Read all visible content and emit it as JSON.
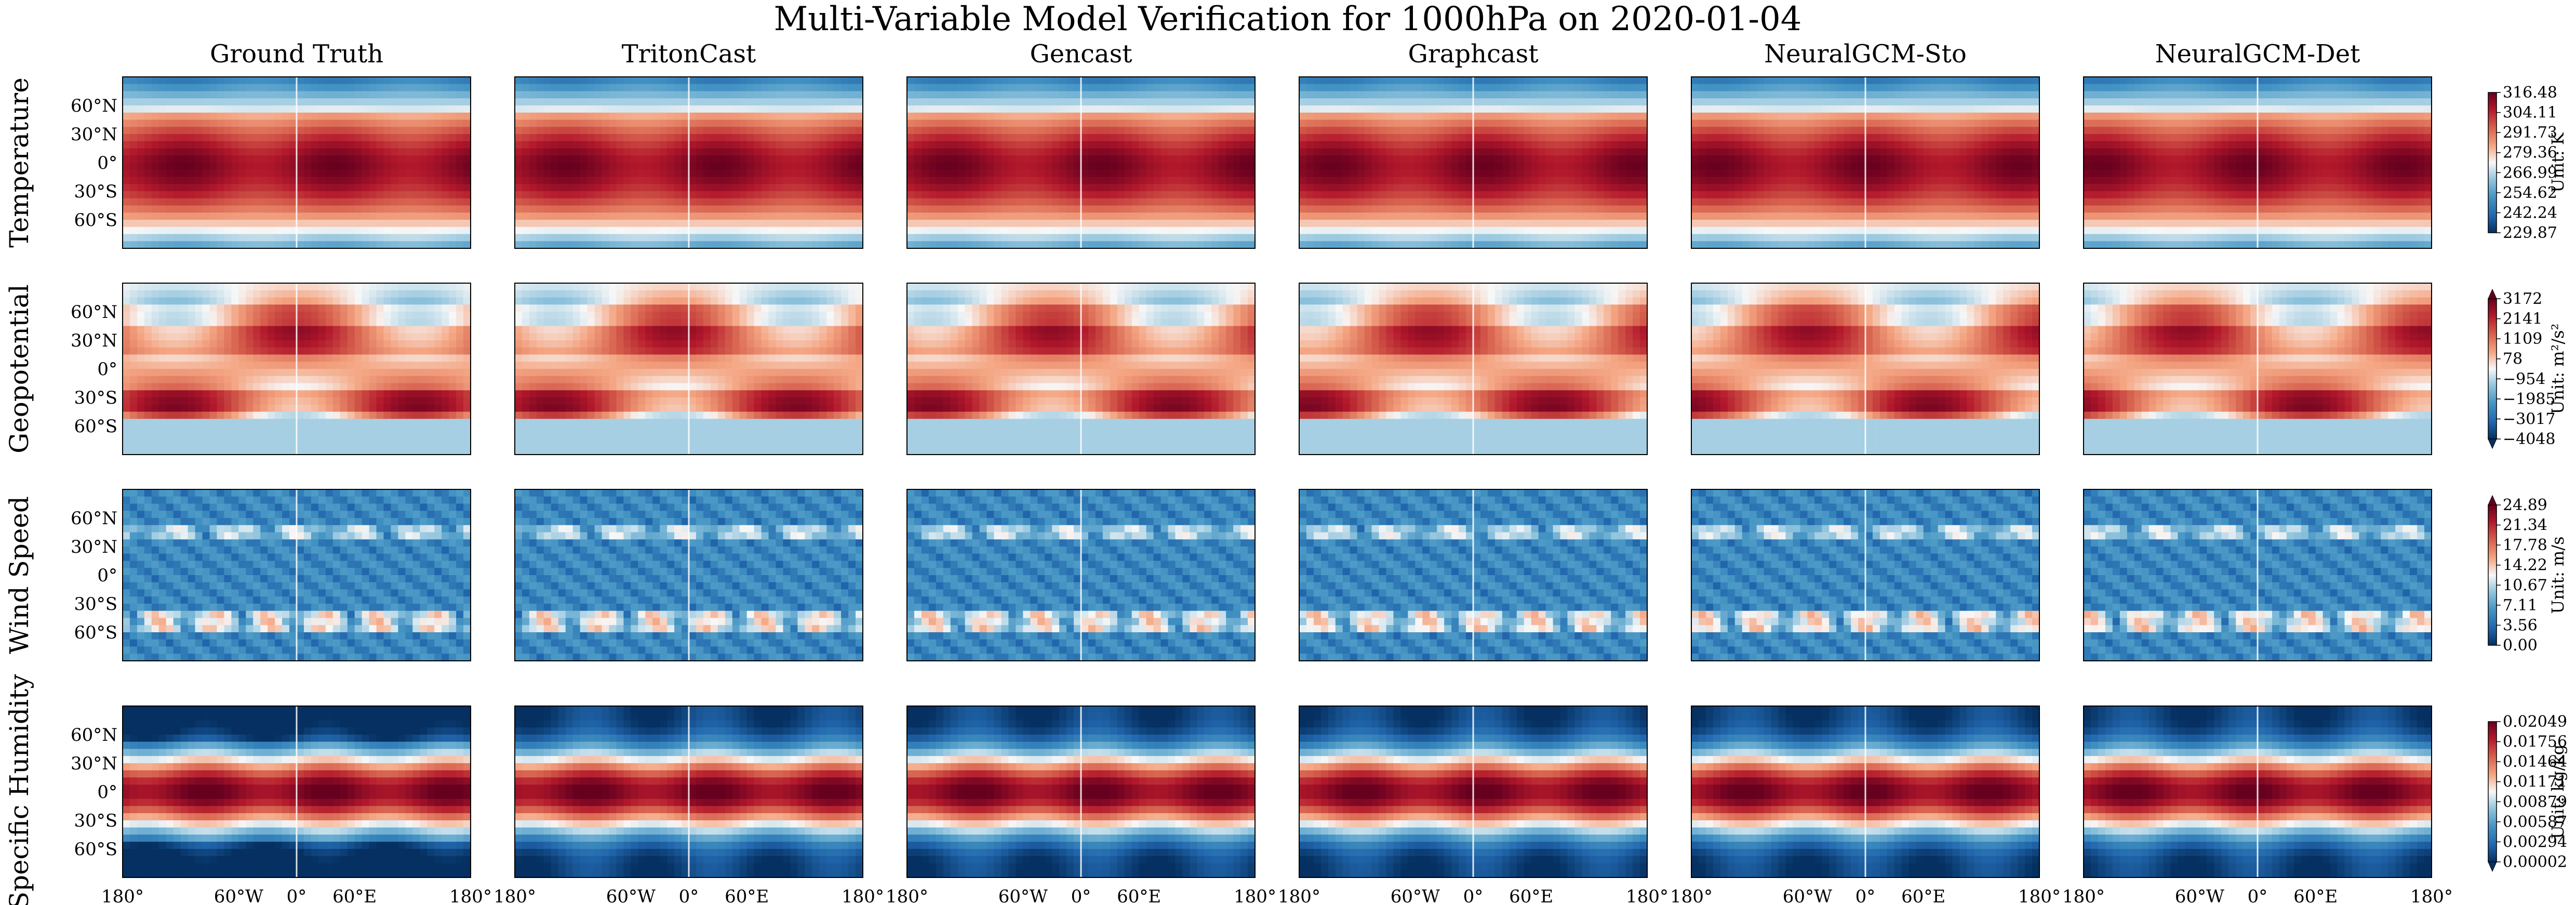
{
  "chart_data": {
    "type": "heatmap",
    "title": "Multi-Variable Model Verification for 1000hPa on 2020-01-04",
    "models": [
      "Ground Truth",
      "TritonCast",
      "Gencast",
      "Graphcast",
      "NeuralGCM-Sto",
      "NeuralGCM-Det"
    ],
    "x_ticks": [
      "180°",
      "60°W",
      "0°",
      "60°E",
      "180°"
    ],
    "x_tick_lon": [
      -180,
      -60,
      0,
      60,
      180
    ],
    "y_ticks": [
      "60°N",
      "30°N",
      "0°",
      "30°S",
      "60°S"
    ],
    "y_tick_lat": [
      60,
      30,
      0,
      -30,
      -60
    ],
    "lat_range": [
      -90,
      90
    ],
    "lon_range": [
      -180,
      180
    ],
    "colormap": "RdBu_r",
    "variables": [
      {
        "name": "Temperature",
        "unit_label": "Unit: K",
        "colorbar_ticks": [
          "316.48",
          "304.11",
          "291.73",
          "279.36",
          "266.99",
          "254.62",
          "242.24",
          "229.87"
        ],
        "vmin": 229.87,
        "vmax": 316.48,
        "extend": "none"
      },
      {
        "name": "Geopotential",
        "unit_label": "Unit: m²/s²",
        "colorbar_ticks": [
          "3172",
          "2141",
          "1109",
          "78",
          "−954",
          "−1985",
          "−3017",
          "−4048"
        ],
        "vmin": -4048,
        "vmax": 3172,
        "extend": "both"
      },
      {
        "name": "Wind Speed",
        "unit_label": "Unit: m/s",
        "colorbar_ticks": [
          "24.89",
          "21.34",
          "17.78",
          "14.22",
          "10.67",
          "7.11",
          "3.56",
          "0.00"
        ],
        "vmin": 0.0,
        "vmax": 24.89,
        "extend": "max"
      },
      {
        "name": "Specific Humidity",
        "unit_label": "Unit: kg/kg",
        "colorbar_ticks": [
          "0.02049",
          "0.01756",
          "0.01464",
          "0.01171",
          "0.00879",
          "0.00587",
          "0.00294",
          "0.00002"
        ],
        "vmin": 2e-05,
        "vmax": 0.02049,
        "extend": "min"
      }
    ]
  },
  "colors": {
    "deep_red": "#67001f",
    "red": "#d6604d",
    "light_red": "#f4a582",
    "white": "#f7f7f7",
    "light_blue": "#92c5de",
    "blue": "#4393c3",
    "deep_blue": "#053061"
  }
}
